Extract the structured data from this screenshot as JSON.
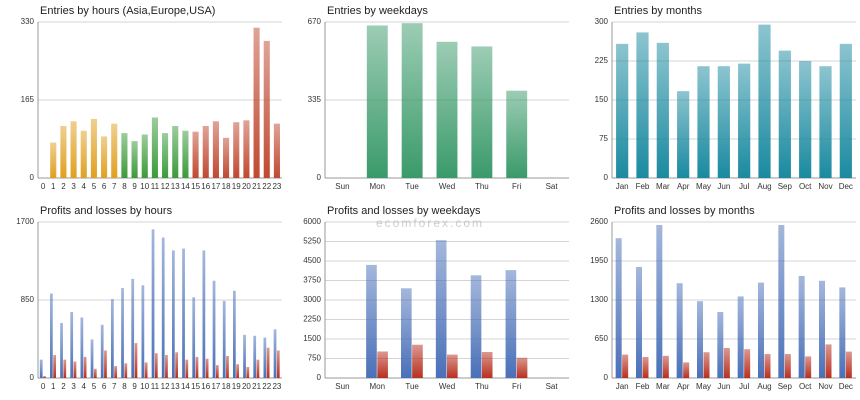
{
  "chart_data": [
    {
      "type": "bar",
      "title": "Entries by hours (Asia,Europe,USA)",
      "categories": [
        "0",
        "1",
        "2",
        "3",
        "4",
        "5",
        "6",
        "7",
        "8",
        "9",
        "10",
        "11",
        "12",
        "13",
        "14",
        "15",
        "16",
        "17",
        "18",
        "19",
        "20",
        "21",
        "22",
        "23"
      ],
      "values": [
        0,
        75,
        110,
        120,
        100,
        125,
        88,
        115,
        95,
        78,
        92,
        128,
        95,
        110,
        100,
        98,
        110,
        120,
        85,
        118,
        122,
        318,
        290,
        115
      ],
      "colors": [
        "#e0a020",
        "#e0a020",
        "#e0a020",
        "#e0a020",
        "#e0a020",
        "#e0a020",
        "#e0a020",
        "#e0a020",
        "#3a9a3a",
        "#3a9a3a",
        "#3a9a3a",
        "#3a9a3a",
        "#3a9a3a",
        "#3a9a3a",
        "#3a9a3a",
        "#c04830",
        "#c04830",
        "#c04830",
        "#c04830",
        "#c04830",
        "#c04830",
        "#c04830",
        "#c04830",
        "#c04830"
      ],
      "ylim": [
        0,
        330
      ],
      "yticks": [
        0,
        165,
        330
      ],
      "grid": true
    },
    {
      "type": "bar",
      "title": "Entries by weekdays",
      "categories": [
        "Sun",
        "Mon",
        "Tue",
        "Wed",
        "Thu",
        "Fri",
        "Sat"
      ],
      "values": [
        0,
        655,
        665,
        585,
        565,
        375,
        0
      ],
      "color": "#3a9a6a",
      "ylim": [
        0,
        670
      ],
      "yticks": [
        0,
        335,
        670
      ],
      "grid": true
    },
    {
      "type": "bar",
      "title": "Entries by months",
      "categories": [
        "Jan",
        "Feb",
        "Mar",
        "Apr",
        "May",
        "Jun",
        "Jul",
        "Aug",
        "Sep",
        "Oct",
        "Nov",
        "Dec"
      ],
      "values": [
        258,
        280,
        260,
        167,
        215,
        215,
        220,
        295,
        245,
        225,
        215,
        258
      ],
      "color": "#1a8aa0",
      "ylim": [
        0,
        300
      ],
      "yticks": [
        0,
        75,
        150,
        225,
        300
      ],
      "grid": true
    },
    {
      "type": "bar",
      "title": "Profits and losses by hours",
      "categories": [
        "0",
        "1",
        "2",
        "3",
        "4",
        "5",
        "6",
        "7",
        "8",
        "9",
        "10",
        "11",
        "12",
        "13",
        "14",
        "15",
        "16",
        "17",
        "18",
        "19",
        "20",
        "21",
        "22",
        "23"
      ],
      "series": [
        {
          "color": "#4a70b8",
          "values": [
            200,
            920,
            600,
            720,
            660,
            420,
            580,
            860,
            980,
            1080,
            1010,
            1620,
            1530,
            1390,
            1410,
            880,
            1390,
            1060,
            840,
            950,
            470,
            460,
            440,
            530
          ]
        },
        {
          "color": "#b83020",
          "values": [
            20,
            250,
            200,
            180,
            230,
            100,
            300,
            130,
            160,
            380,
            170,
            270,
            250,
            280,
            200,
            230,
            210,
            140,
            240,
            150,
            120,
            200,
            330,
            300
          ]
        }
      ],
      "ylim": [
        0,
        1700
      ],
      "yticks": [
        0,
        850,
        1700
      ],
      "grid": true
    },
    {
      "type": "bar",
      "title": "Profits and losses by weekdays",
      "categories": [
        "Sun",
        "Mon",
        "Tue",
        "Wed",
        "Thu",
        "Fri",
        "Sat"
      ],
      "series": [
        {
          "color": "#4a70b8",
          "values": [
            0,
            4350,
            3450,
            5300,
            3950,
            4150,
            0
          ]
        },
        {
          "color": "#b83020",
          "values": [
            0,
            1020,
            1280,
            900,
            1000,
            780,
            0
          ]
        }
      ],
      "ylim": [
        0,
        6000
      ],
      "yticks": [
        0,
        750,
        1500,
        2250,
        3000,
        3750,
        4500,
        5250,
        6000
      ],
      "grid": true
    },
    {
      "type": "bar",
      "title": "Profits and losses by months",
      "categories": [
        "Jan",
        "Feb",
        "Mar",
        "Apr",
        "May",
        "Jun",
        "Jul",
        "Aug",
        "Sep",
        "Oct",
        "Nov",
        "Dec"
      ],
      "series": [
        {
          "color": "#4a70b8",
          "values": [
            2330,
            1850,
            2550,
            1580,
            1280,
            1100,
            1360,
            1590,
            2550,
            1700,
            1620,
            1510
          ]
        },
        {
          "color": "#b83020",
          "values": [
            390,
            350,
            370,
            260,
            430,
            500,
            480,
            400,
            400,
            360,
            560,
            440
          ]
        }
      ],
      "ylim": [
        0,
        2600
      ],
      "yticks": [
        0,
        650,
        1300,
        1950,
        2600
      ],
      "grid": true
    }
  ],
  "watermark": "ecomforex.com"
}
